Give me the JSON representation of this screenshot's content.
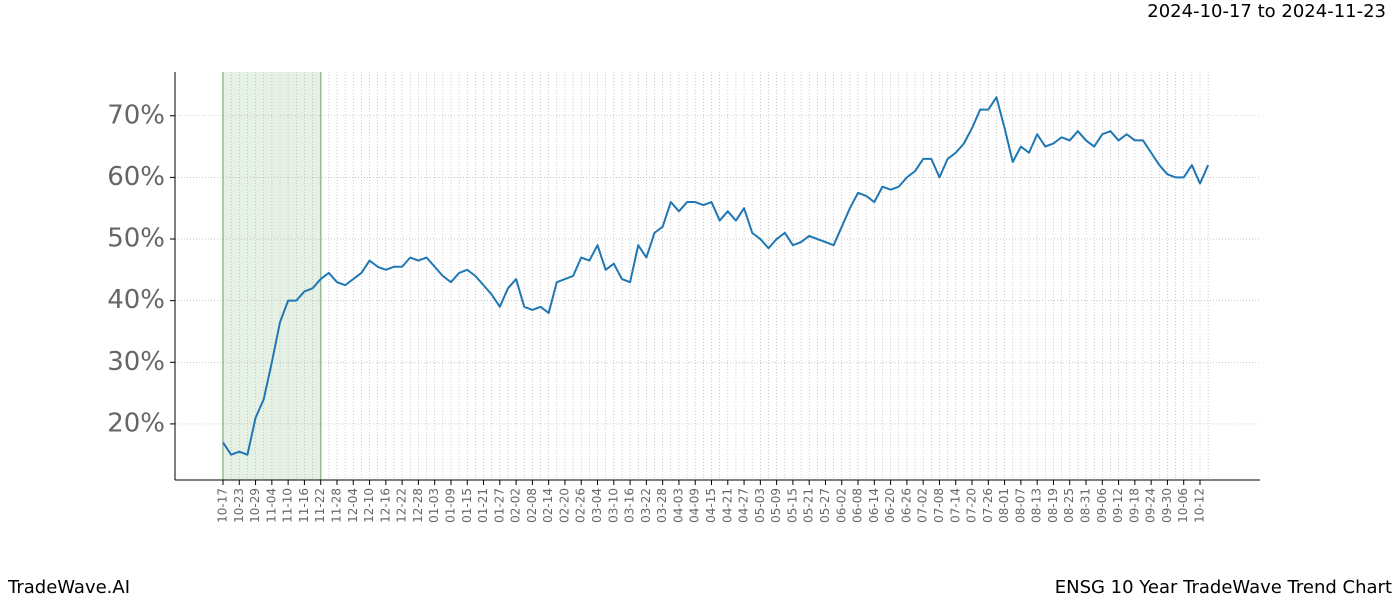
{
  "chart_data": {
    "type": "line",
    "title": "2024-10-17 to 2024-11-23",
    "footer_left": "TradeWave.AI",
    "footer_right": "ENSG 10 Year TradeWave Trend Chart",
    "categories": [
      "10-17",
      null,
      "10-23",
      null,
      "10-29",
      null,
      "11-04",
      null,
      "11-10",
      null,
      "11-16",
      null,
      "11-22",
      null,
      "11-28",
      null,
      "12-04",
      null,
      "12-10",
      null,
      "12-16",
      null,
      "12-22",
      null,
      "12-28",
      null,
      "01-03",
      null,
      "01-09",
      null,
      "01-15",
      null,
      "01-21",
      null,
      "01-27",
      null,
      "02-02",
      null,
      "02-08",
      null,
      "02-14",
      null,
      "02-20",
      null,
      "02-26",
      null,
      "03-04",
      null,
      "03-10",
      null,
      "03-16",
      null,
      "03-22",
      null,
      "03-28",
      null,
      "04-03",
      null,
      "04-09",
      null,
      "04-15",
      null,
      "04-21",
      null,
      "04-27",
      null,
      "05-03",
      null,
      "05-09",
      null,
      "05-15",
      null,
      "05-21",
      null,
      "05-27",
      null,
      "06-02",
      null,
      "06-08",
      null,
      "06-14",
      null,
      "06-20",
      null,
      "06-26",
      null,
      "07-02",
      null,
      "07-08",
      null,
      "07-14",
      null,
      "07-20",
      null,
      "07-26",
      null,
      "08-01",
      null,
      "08-07",
      null,
      "08-13",
      null,
      "08-19",
      null,
      "08-25",
      null,
      "08-31",
      null,
      "09-06",
      null,
      "09-12",
      null,
      "09-18",
      null,
      "09-24",
      null,
      "09-30",
      null,
      "10-06",
      null,
      "10-12",
      null
    ],
    "values": [
      17,
      15,
      15.5,
      15,
      21,
      24,
      30,
      36.5,
      40,
      40,
      41.5,
      42,
      43.5,
      44.5,
      43,
      42.5,
      43.5,
      44.5,
      46.5,
      45.5,
      45,
      45.5,
      45.5,
      47,
      46.5,
      47,
      45.5,
      44,
      43,
      44.5,
      45,
      44,
      42.5,
      41,
      39,
      42,
      43.5,
      39,
      38.5,
      39,
      38,
      43,
      43.5,
      44,
      47,
      46.5,
      49,
      45,
      46,
      43.5,
      43,
      49,
      47,
      51,
      52,
      56,
      54.5,
      56,
      56,
      55.5,
      56,
      53,
      54.5,
      53,
      55,
      51,
      50,
      48.5,
      50,
      51,
      49,
      49.5,
      50.5,
      50,
      49.5,
      49,
      52,
      55,
      57.5,
      57,
      56,
      58.5,
      58,
      58.5,
      60,
      61,
      63,
      63,
      60,
      63,
      64,
      65.5,
      68,
      71,
      71,
      73,
      68,
      62.5,
      65,
      64,
      67,
      65,
      65.5,
      66.5,
      66,
      67.5,
      66,
      65,
      67,
      67.5,
      66,
      67,
      66,
      66,
      64,
      62,
      60.5,
      60,
      60,
      62,
      59,
      62
    ],
    "color": "#1f77b4",
    "highlight": [
      "10-17",
      "11-22"
    ],
    "highlight_color": "#d5e8d4",
    "ylim": [
      10.9,
      77.1
    ],
    "yticks": [
      {
        "value": 20,
        "label": "20%"
      },
      {
        "value": 30,
        "label": "30%"
      },
      {
        "value": 40,
        "label": "40%"
      },
      {
        "value": 50,
        "label": "50%"
      },
      {
        "value": 60,
        "label": "60%"
      },
      {
        "value": 70,
        "label": "70%"
      }
    ],
    "grid": true
  }
}
